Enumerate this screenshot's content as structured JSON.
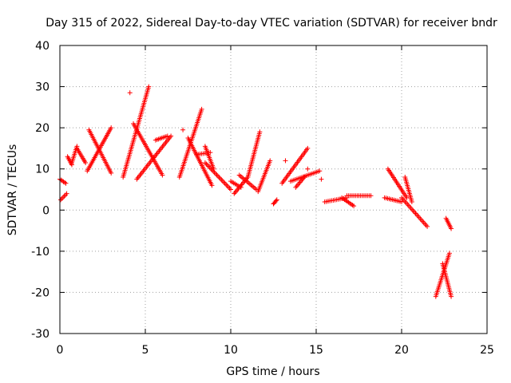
{
  "chart_data": {
    "type": "scatter",
    "title": "Day 315 of 2022, Sidereal Day-to-day VTEC variation (SDTVAR) for receiver bndr",
    "xlabel": "GPS time / hours",
    "ylabel": "SDTVAR / TECUs",
    "xlim": [
      0,
      25
    ],
    "ylim": [
      -30,
      40
    ],
    "xticks": [
      0,
      5,
      10,
      15,
      20,
      25
    ],
    "yticks": [
      -30,
      -20,
      -10,
      0,
      10,
      20,
      30,
      40
    ],
    "xtick_labels": [
      "0",
      "5",
      "10",
      "15",
      "20",
      "25"
    ],
    "ytick_labels": [
      "-30",
      "-20",
      "-10",
      "0",
      "10",
      "20",
      "30",
      "40"
    ],
    "grid": true,
    "marker": "plus",
    "marker_color": "#ff0000",
    "segments": [
      {
        "x": [
          0.0,
          0.35
        ],
        "y": [
          7.5,
          6.5
        ]
      },
      {
        "x": [
          0.05,
          0.4
        ],
        "y": [
          2.5,
          4.0
        ]
      },
      {
        "x": [
          0.45,
          0.7
        ],
        "y": [
          13.0,
          11.0
        ]
      },
      {
        "x": [
          0.7,
          1.0
        ],
        "y": [
          11.5,
          15.5
        ]
      },
      {
        "x": [
          1.0,
          1.5
        ],
        "y": [
          15.0,
          11.5
        ]
      },
      {
        "x": [
          1.6,
          3.0
        ],
        "y": [
          9.5,
          20.0
        ]
      },
      {
        "x": [
          1.7,
          3.0
        ],
        "y": [
          19.5,
          9.0
        ]
      },
      {
        "x": [
          3.7,
          5.2
        ],
        "y": [
          8.0,
          30.0
        ]
      },
      {
        "x": [
          4.3,
          6.0
        ],
        "y": [
          21.0,
          8.5
        ]
      },
      {
        "x": [
          4.5,
          6.5
        ],
        "y": [
          7.5,
          18.0
        ]
      },
      {
        "x": [
          5.6,
          6.3
        ],
        "y": [
          17.0,
          18.0
        ]
      },
      {
        "x": [
          7.0,
          8.3
        ],
        "y": [
          8.0,
          24.5
        ]
      },
      {
        "x": [
          7.5,
          8.9
        ],
        "y": [
          17.5,
          6.0
        ]
      },
      {
        "x": [
          8.0,
          8.8
        ],
        "y": [
          13.5,
          14.0
        ]
      },
      {
        "x": [
          8.5,
          9.0
        ],
        "y": [
          15.5,
          10.0
        ]
      },
      {
        "x": [
          8.5,
          10.0
        ],
        "y": [
          11.5,
          5.0
        ]
      },
      {
        "x": [
          10.0,
          10.6
        ],
        "y": [
          7.0,
          5.5
        ]
      },
      {
        "x": [
          10.2,
          11.0
        ],
        "y": [
          4.0,
          8.0
        ]
      },
      {
        "x": [
          10.5,
          11.5
        ],
        "y": [
          8.5,
          5.0
        ]
      },
      {
        "x": [
          11.0,
          11.7
        ],
        "y": [
          8.0,
          19.0
        ]
      },
      {
        "x": [
          11.6,
          12.3
        ],
        "y": [
          4.5,
          12.0
        ]
      },
      {
        "x": [
          12.5,
          12.7
        ],
        "y": [
          1.5,
          2.5
        ]
      },
      {
        "x": [
          13.0,
          14.5
        ],
        "y": [
          6.5,
          15.0
        ]
      },
      {
        "x": [
          13.5,
          15.2
        ],
        "y": [
          7.0,
          9.5
        ]
      },
      {
        "x": [
          13.8,
          14.3
        ],
        "y": [
          5.5,
          8.0
        ]
      },
      {
        "x": [
          15.5,
          16.8
        ],
        "y": [
          2.0,
          3.0
        ]
      },
      {
        "x": [
          16.8,
          18.2
        ],
        "y": [
          3.5,
          3.5
        ]
      },
      {
        "x": [
          16.5,
          17.2
        ],
        "y": [
          3.0,
          1.0
        ]
      },
      {
        "x": [
          19.0,
          20.0
        ],
        "y": [
          3.0,
          2.0
        ]
      },
      {
        "x": [
          19.2,
          20.3
        ],
        "y": [
          10.0,
          3.0
        ]
      },
      {
        "x": [
          20.0,
          21.5
        ],
        "y": [
          3.0,
          -4.0
        ]
      },
      {
        "x": [
          20.2,
          20.6
        ],
        "y": [
          8.0,
          2.0
        ]
      },
      {
        "x": [
          22.0,
          22.8
        ],
        "y": [
          -21.0,
          -10.5
        ]
      },
      {
        "x": [
          22.4,
          22.9
        ],
        "y": [
          -13.0,
          -21.0
        ]
      },
      {
        "x": [
          22.6,
          22.9
        ],
        "y": [
          -2.0,
          -4.5
        ]
      }
    ],
    "isolated_points": [
      {
        "x": 4.1,
        "y": 28.5
      },
      {
        "x": 7.2,
        "y": 19.5
      },
      {
        "x": 13.2,
        "y": 12.0
      },
      {
        "x": 14.5,
        "y": 10.0
      },
      {
        "x": 15.3,
        "y": 7.5
      }
    ]
  }
}
